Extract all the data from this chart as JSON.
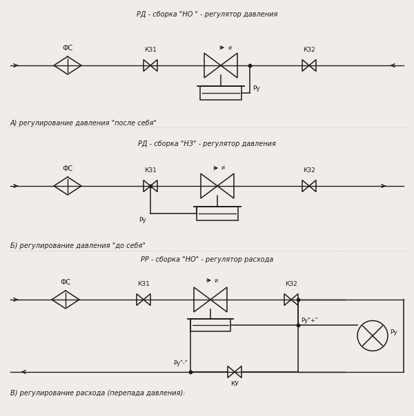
{
  "title_A": "РД - сборка \"НО \" - регулятор давления",
  "title_B": "РД - сборка \"НЗ\" - регулятор давления",
  "title_C": "РР - сборка \"НО\" - регулятор расхода",
  "label_A": "А) регулирование давления \"после себя\"",
  "label_B": "Б) регулирование давления \"до себя\"",
  "label_C": "В) регулирование расхода (перепада давления):",
  "bg_color": "#f0ede8",
  "line_color": "#1a1a1a",
  "lw": 1.1
}
